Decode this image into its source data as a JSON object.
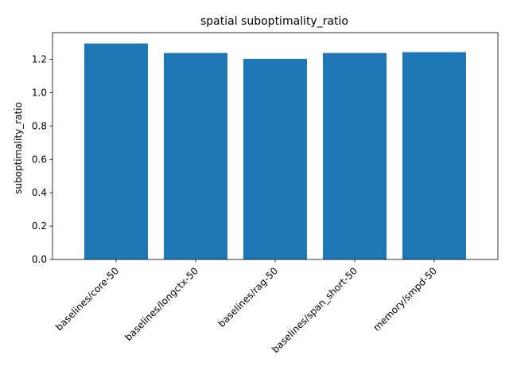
{
  "chart_data": {
    "type": "bar",
    "title": "spatial suboptimality_ratio",
    "xlabel": "",
    "ylabel": "suboptimality_ratio",
    "categories": [
      "baselines/core-50",
      "baselines/longctx-50",
      "baselines/rag-50",
      "baselines/span_short-50",
      "memory/smpd-50"
    ],
    "values": [
      1.295,
      1.238,
      1.203,
      1.238,
      1.243
    ],
    "ylim": [
      0,
      1.36
    ],
    "yticks": [
      0.0,
      0.2,
      0.4,
      0.6,
      0.8,
      1.0,
      1.2
    ],
    "ytick_labels": [
      "0.0",
      "0.2",
      "0.4",
      "0.6",
      "0.8",
      "1.0",
      "1.2"
    ],
    "bar_color": "#1f77b4",
    "grid": false,
    "legend": "none"
  }
}
